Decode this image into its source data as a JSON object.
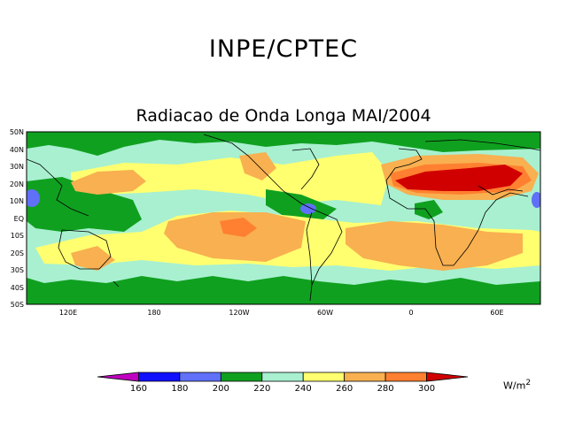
{
  "header": {
    "title": "INPE/CPTEC"
  },
  "map": {
    "title": "Radiacao de Onda Longa MAI/2004",
    "lat_labels": [
      "50N",
      "40N",
      "30N",
      "20N",
      "10N",
      "EQ",
      "10S",
      "20S",
      "30S",
      "40S",
      "50S"
    ],
    "lon_labels": [
      "120E",
      "180",
      "120W",
      "60W",
      "0",
      "60E"
    ],
    "background_color": "#a8f0d0"
  },
  "legend": {
    "values": [
      "160",
      "180",
      "200",
      "220",
      "240",
      "260",
      "280",
      "300"
    ],
    "colors": [
      "#c000c0",
      "#1010ff",
      "#6070f8",
      "#10a020",
      "#a8f0d0",
      "#ffff70",
      "#f8b050",
      "#ff8030",
      "#d00000"
    ],
    "unit": "W/m",
    "unit_exp": "2"
  }
}
